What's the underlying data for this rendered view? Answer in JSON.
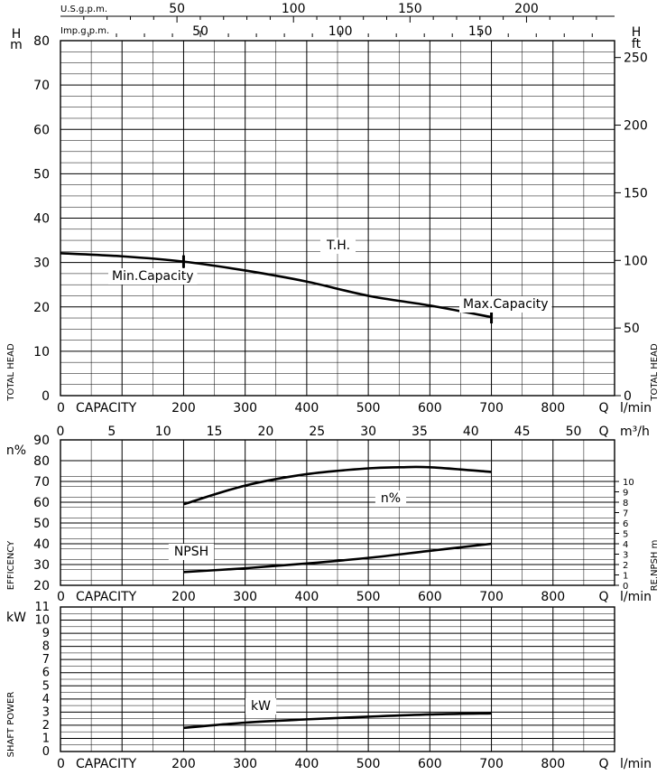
{
  "chart_data": [
    {
      "type": "line",
      "name_ref": "head",
      "ylabel_left_top": "H",
      "ylabel_left_unit": "m",
      "ylabel_right_top": "H",
      "ylabel_right_unit": "ft",
      "ylabel_left_vertical": "TOTAL HEAD",
      "ylabel_right_vertical": "TOTAL HEAD",
      "ylim": [
        0,
        80
      ],
      "yticks": [
        0,
        10,
        20,
        30,
        40,
        50,
        60,
        70,
        80
      ],
      "ft_ticks": [
        0,
        50,
        100,
        150,
        200,
        250
      ],
      "top_axis_us_label": "U.S.g.p.m.",
      "top_axis_us_ticks": [
        50,
        100,
        150,
        200
      ],
      "top_axis_imp_label": "Imp.g.p.m.",
      "top_axis_imp_ticks": [
        50,
        100,
        150
      ],
      "xlabel_left": "CAPACITY",
      "xlabel_right_q": "Q",
      "xlabel_right_unit": "l/min",
      "xticks": [
        0,
        200,
        300,
        400,
        500,
        600,
        700,
        800
      ],
      "xlim": [
        0,
        900
      ],
      "series": [
        {
          "name": "T.H.",
          "x": [
            0,
            100,
            200,
            300,
            400,
            500,
            600,
            700
          ],
          "y": [
            32.1,
            31.4,
            30.2,
            28.2,
            25.7,
            22.5,
            20.3,
            17.7
          ]
        }
      ],
      "annotations": [
        {
          "text": "Min.Capacity",
          "x": 200,
          "y": 30.2
        },
        {
          "text": "Max.Capacity",
          "x": 700,
          "y": 17.7
        }
      ]
    },
    {
      "type": "line",
      "name_ref": "efficiency",
      "ylabel_left_top": "n%",
      "ylabel_left_vertical": "EFFICENCY",
      "ylabel_right_vertical": "RE.NPSH m",
      "ylim": [
        20,
        90
      ],
      "yticks": [
        20,
        30,
        40,
        50,
        60,
        70,
        80,
        90
      ],
      "npsh_ticks": [
        0,
        1,
        2,
        3,
        4,
        5,
        6,
        7,
        8,
        9,
        10
      ],
      "top_axis_m3h_ticks": [
        0,
        5,
        10,
        15,
        20,
        25,
        30,
        35,
        40,
        45,
        50
      ],
      "top_axis_m3h_q": "Q",
      "top_axis_m3h_unit": "m³/h",
      "xlabel_left": "CAPACITY",
      "xlabel_right_q": "Q",
      "xlabel_right_unit": "l/min",
      "xticks": [
        0,
        200,
        300,
        400,
        500,
        600,
        700,
        800
      ],
      "xlim": [
        0,
        900
      ],
      "series": [
        {
          "name": "n%",
          "x": [
            200,
            300,
            400,
            500,
            550,
            600,
            700
          ],
          "y": [
            59,
            68,
            73.5,
            76.3,
            76.8,
            76.8,
            74.6
          ]
        },
        {
          "name": "NPSH",
          "x": [
            200,
            300,
            400,
            500,
            600,
            700
          ],
          "y": [
            26.4,
            28.2,
            30.5,
            33.2,
            36.6,
            40
          ]
        }
      ]
    },
    {
      "type": "line",
      "name_ref": "power",
      "ylabel_left_top": "kW",
      "ylabel_left_vertical": "SHAFT POWER",
      "ylim": [
        0,
        11
      ],
      "yticks": [
        0,
        1,
        2,
        3,
        4,
        5,
        6,
        7,
        8,
        9,
        10,
        11
      ],
      "xlabel_left": "CAPACITY",
      "xlabel_right_q": "Q",
      "xlabel_right_unit": "l/min",
      "xticks": [
        0,
        200,
        300,
        400,
        500,
        600,
        700,
        800
      ],
      "xlim": [
        0,
        900
      ],
      "series": [
        {
          "name": "kW",
          "x": [
            200,
            300,
            400,
            500,
            600,
            700
          ],
          "y": [
            1.8,
            2.2,
            2.45,
            2.65,
            2.82,
            2.9
          ]
        }
      ]
    }
  ]
}
